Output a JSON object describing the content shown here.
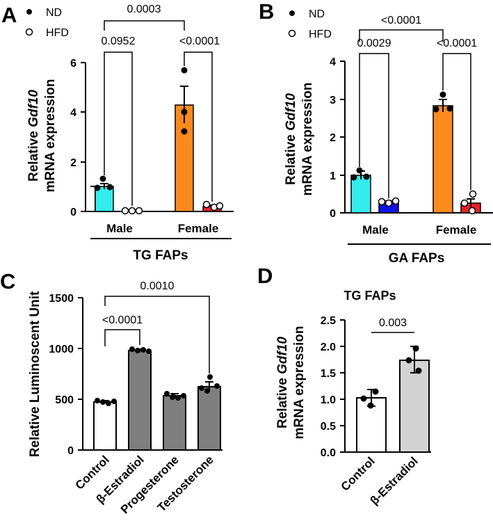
{
  "chart_data": [
    {
      "panel": "A",
      "type": "bar",
      "ylabel_prefix": "Relative ",
      "ylabel_gene": "Gdf10",
      "ylabel_line2": "mRNA expression",
      "ylim": [
        0,
        6
      ],
      "yticks": [
        "0",
        "2",
        "4",
        "6"
      ],
      "categories": [
        "Male",
        "Female"
      ],
      "group_label": "TG FAPs",
      "legend": [
        {
          "name": "ND",
          "marker": "filled"
        },
        {
          "name": "HFD",
          "marker": "open"
        }
      ],
      "series": [
        {
          "name": "ND",
          "values": [
            1.0,
            4.3
          ],
          "errors": [
            0.12,
            0.72
          ],
          "points": [
            [
              1.15,
              0.95,
              0.98
            ],
            [
              5.7,
              3.2,
              4.0
            ]
          ],
          "colors": [
            "#33ecec",
            "#fb8a1f"
          ]
        },
        {
          "name": "HFD",
          "values": [
            0.01,
            0.2
          ],
          "errors": [
            0.01,
            0.05
          ],
          "points": [
            [
              0.01,
              0.01,
              0.01
            ],
            [
              0.28,
              0.16,
              0.22
            ]
          ],
          "colors": [
            "#1212e6",
            "#e8202a"
          ]
        }
      ],
      "comparisons": [
        {
          "label": "0.0952",
          "from": [
            0,
            0
          ],
          "to": [
            0,
            1
          ]
        },
        {
          "label": "<0.0001",
          "from": [
            1,
            0
          ],
          "to": [
            1,
            1
          ]
        },
        {
          "label": "0.0003",
          "from": [
            0,
            0
          ],
          "to": [
            1,
            0
          ]
        }
      ]
    },
    {
      "panel": "B",
      "type": "bar",
      "ylabel_prefix": "Relative ",
      "ylabel_gene": "Gdf10",
      "ylabel_line2": "mRNA expression",
      "ylim": [
        0,
        4
      ],
      "yticks": [
        "0",
        "1",
        "2",
        "3",
        "4"
      ],
      "categories": [
        "Male",
        "Female"
      ],
      "group_label": "GA FAPs",
      "legend": [
        {
          "name": "ND",
          "marker": "filled"
        },
        {
          "name": "HFD",
          "marker": "open"
        }
      ],
      "series": [
        {
          "name": "ND",
          "values": [
            1.0,
            2.82
          ],
          "errors": [
            0.1,
            0.17
          ],
          "points": [
            [
              1.1,
              0.93,
              0.96
            ],
            [
              3.1,
              2.72,
              2.75
            ]
          ],
          "colors": [
            "#33ecec",
            "#fb8a1f"
          ]
        },
        {
          "name": "HFD",
          "values": [
            0.28,
            0.26
          ],
          "errors": [
            0.03,
            0.12
          ],
          "points": [
            [
              0.3,
              0.25,
              0.31
            ],
            [
              0.5,
              0.05,
              0.25
            ]
          ],
          "colors": [
            "#1212e6",
            "#e8202a"
          ]
        }
      ],
      "comparisons": [
        {
          "label": "0.0029",
          "from": [
            0,
            0
          ],
          "to": [
            0,
            1
          ]
        },
        {
          "label": "<0.0001",
          "from": [
            1,
            0
          ],
          "to": [
            1,
            1
          ]
        },
        {
          "label": "<0.0001",
          "from": [
            0,
            0
          ],
          "to": [
            1,
            0
          ]
        }
      ]
    },
    {
      "panel": "C",
      "type": "bar",
      "ylabel": "Relative Luminoscent Unit",
      "ylim": [
        0,
        1500
      ],
      "yticks": [
        "0",
        "500",
        "1000",
        "1500"
      ],
      "categories": [
        "Control",
        "β-Estradiol",
        "Progesterone",
        "Testosterone"
      ],
      "values": [
        470,
        980,
        535,
        620
      ],
      "errors": [
        12,
        8,
        16,
        45
      ],
      "points": [
        [
          480,
          470,
          460,
          475
        ],
        [
          990,
          975,
          985,
          970
        ],
        [
          560,
          530,
          520,
          540
        ],
        [
          700,
          600,
          580,
          630
        ]
      ],
      "colors": [
        "#ffffff",
        "#7f7f7f",
        "#7f7f7f",
        "#7f7f7f"
      ],
      "comparisons": [
        {
          "label": "<0.0001",
          "from": 0,
          "to": 1
        },
        {
          "label": "0.0010",
          "from": 0,
          "to": 3
        }
      ]
    },
    {
      "panel": "D",
      "type": "bar",
      "title": "TG FAPs",
      "ylabel_prefix": "Relative ",
      "ylabel_gene": "Gdf10",
      "ylabel_line2": "mRNA expression",
      "ylim": [
        0,
        2.5
      ],
      "yticks": [
        "0.0",
        "0.5",
        "1.0",
        "1.5",
        "2.0",
        "2.5"
      ],
      "categories": [
        "Control",
        "β-Estradiol"
      ],
      "values": [
        1.02,
        1.74
      ],
      "errors": [
        0.16,
        0.25
      ],
      "points": [
        [
          1.15,
          1.02,
          0.88
        ],
        [
          1.95,
          1.75,
          1.55
        ]
      ],
      "colors": [
        "#ffffff",
        "#d3d3d3"
      ],
      "comparisons": [
        {
          "label": "0.003",
          "from": 0,
          "to": 1
        }
      ]
    }
  ]
}
